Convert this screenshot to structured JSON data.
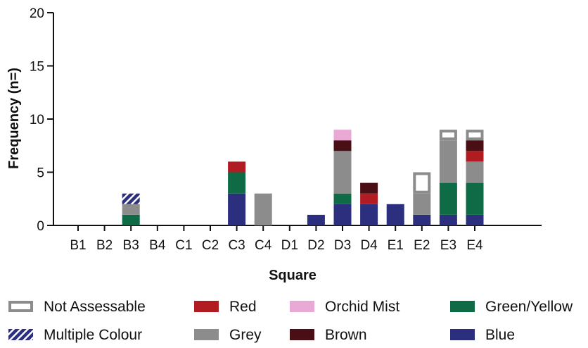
{
  "chart_data": {
    "type": "bar",
    "stacked": true,
    "xlabel": "Square",
    "ylabel": "Frequency (n=)",
    "ylim": [
      0,
      20
    ],
    "yticks": [
      0,
      5,
      10,
      15,
      20
    ],
    "categories": [
      "B1",
      "B2",
      "B3",
      "B4",
      "C1",
      "C2",
      "C3",
      "C4",
      "D1",
      "D2",
      "D3",
      "D4",
      "E1",
      "E2",
      "E3",
      "E4"
    ],
    "series": [
      {
        "name": "Blue",
        "color": "#2b2f7e",
        "values": [
          0,
          0,
          0,
          0,
          0,
          0,
          3,
          0,
          0,
          1,
          2,
          2,
          2,
          1,
          1,
          1
        ]
      },
      {
        "name": "Green/Yellow",
        "color": "#0f6b45",
        "values": [
          0,
          0,
          1,
          0,
          0,
          0,
          2,
          0,
          0,
          0,
          1,
          0,
          0,
          0,
          3,
          3
        ]
      },
      {
        "name": "Grey",
        "color": "#8c8c8c",
        "values": [
          0,
          0,
          1,
          0,
          0,
          0,
          0,
          3,
          0,
          0,
          4,
          0,
          0,
          2,
          4,
          2
        ]
      },
      {
        "name": "Red",
        "color": "#b01c22",
        "values": [
          0,
          0,
          0,
          0,
          0,
          0,
          1,
          0,
          0,
          0,
          0,
          1,
          0,
          0,
          0,
          1
        ]
      },
      {
        "name": "Brown",
        "color": "#4a0f14",
        "values": [
          0,
          0,
          0,
          0,
          0,
          0,
          0,
          0,
          0,
          0,
          1,
          1,
          0,
          0,
          0,
          1
        ]
      },
      {
        "name": "Orchid Mist",
        "color": "#e8a9d4",
        "values": [
          0,
          0,
          0,
          0,
          0,
          0,
          0,
          0,
          0,
          0,
          1,
          0,
          0,
          0,
          0,
          0
        ]
      },
      {
        "name": "Multiple Colour",
        "color": "#2b2f7e",
        "pattern": "hatched",
        "values": [
          0,
          0,
          1,
          0,
          0,
          0,
          0,
          0,
          0,
          0,
          0,
          0,
          0,
          0,
          0,
          0
        ]
      },
      {
        "name": "Not Assessable",
        "color": "#8c8c8c",
        "pattern": "outline",
        "values": [
          0,
          0,
          0,
          0,
          0,
          0,
          0,
          0,
          0,
          0,
          0,
          0,
          0,
          2,
          1,
          1
        ]
      }
    ],
    "legend": {
      "position": "bottom",
      "rows": [
        [
          "Not Assessable",
          "Red",
          "Orchid Mist",
          "Green/Yellow"
        ],
        [
          "Multiple Colour",
          "Grey",
          "Brown",
          "Blue"
        ]
      ]
    },
    "grid": false
  }
}
